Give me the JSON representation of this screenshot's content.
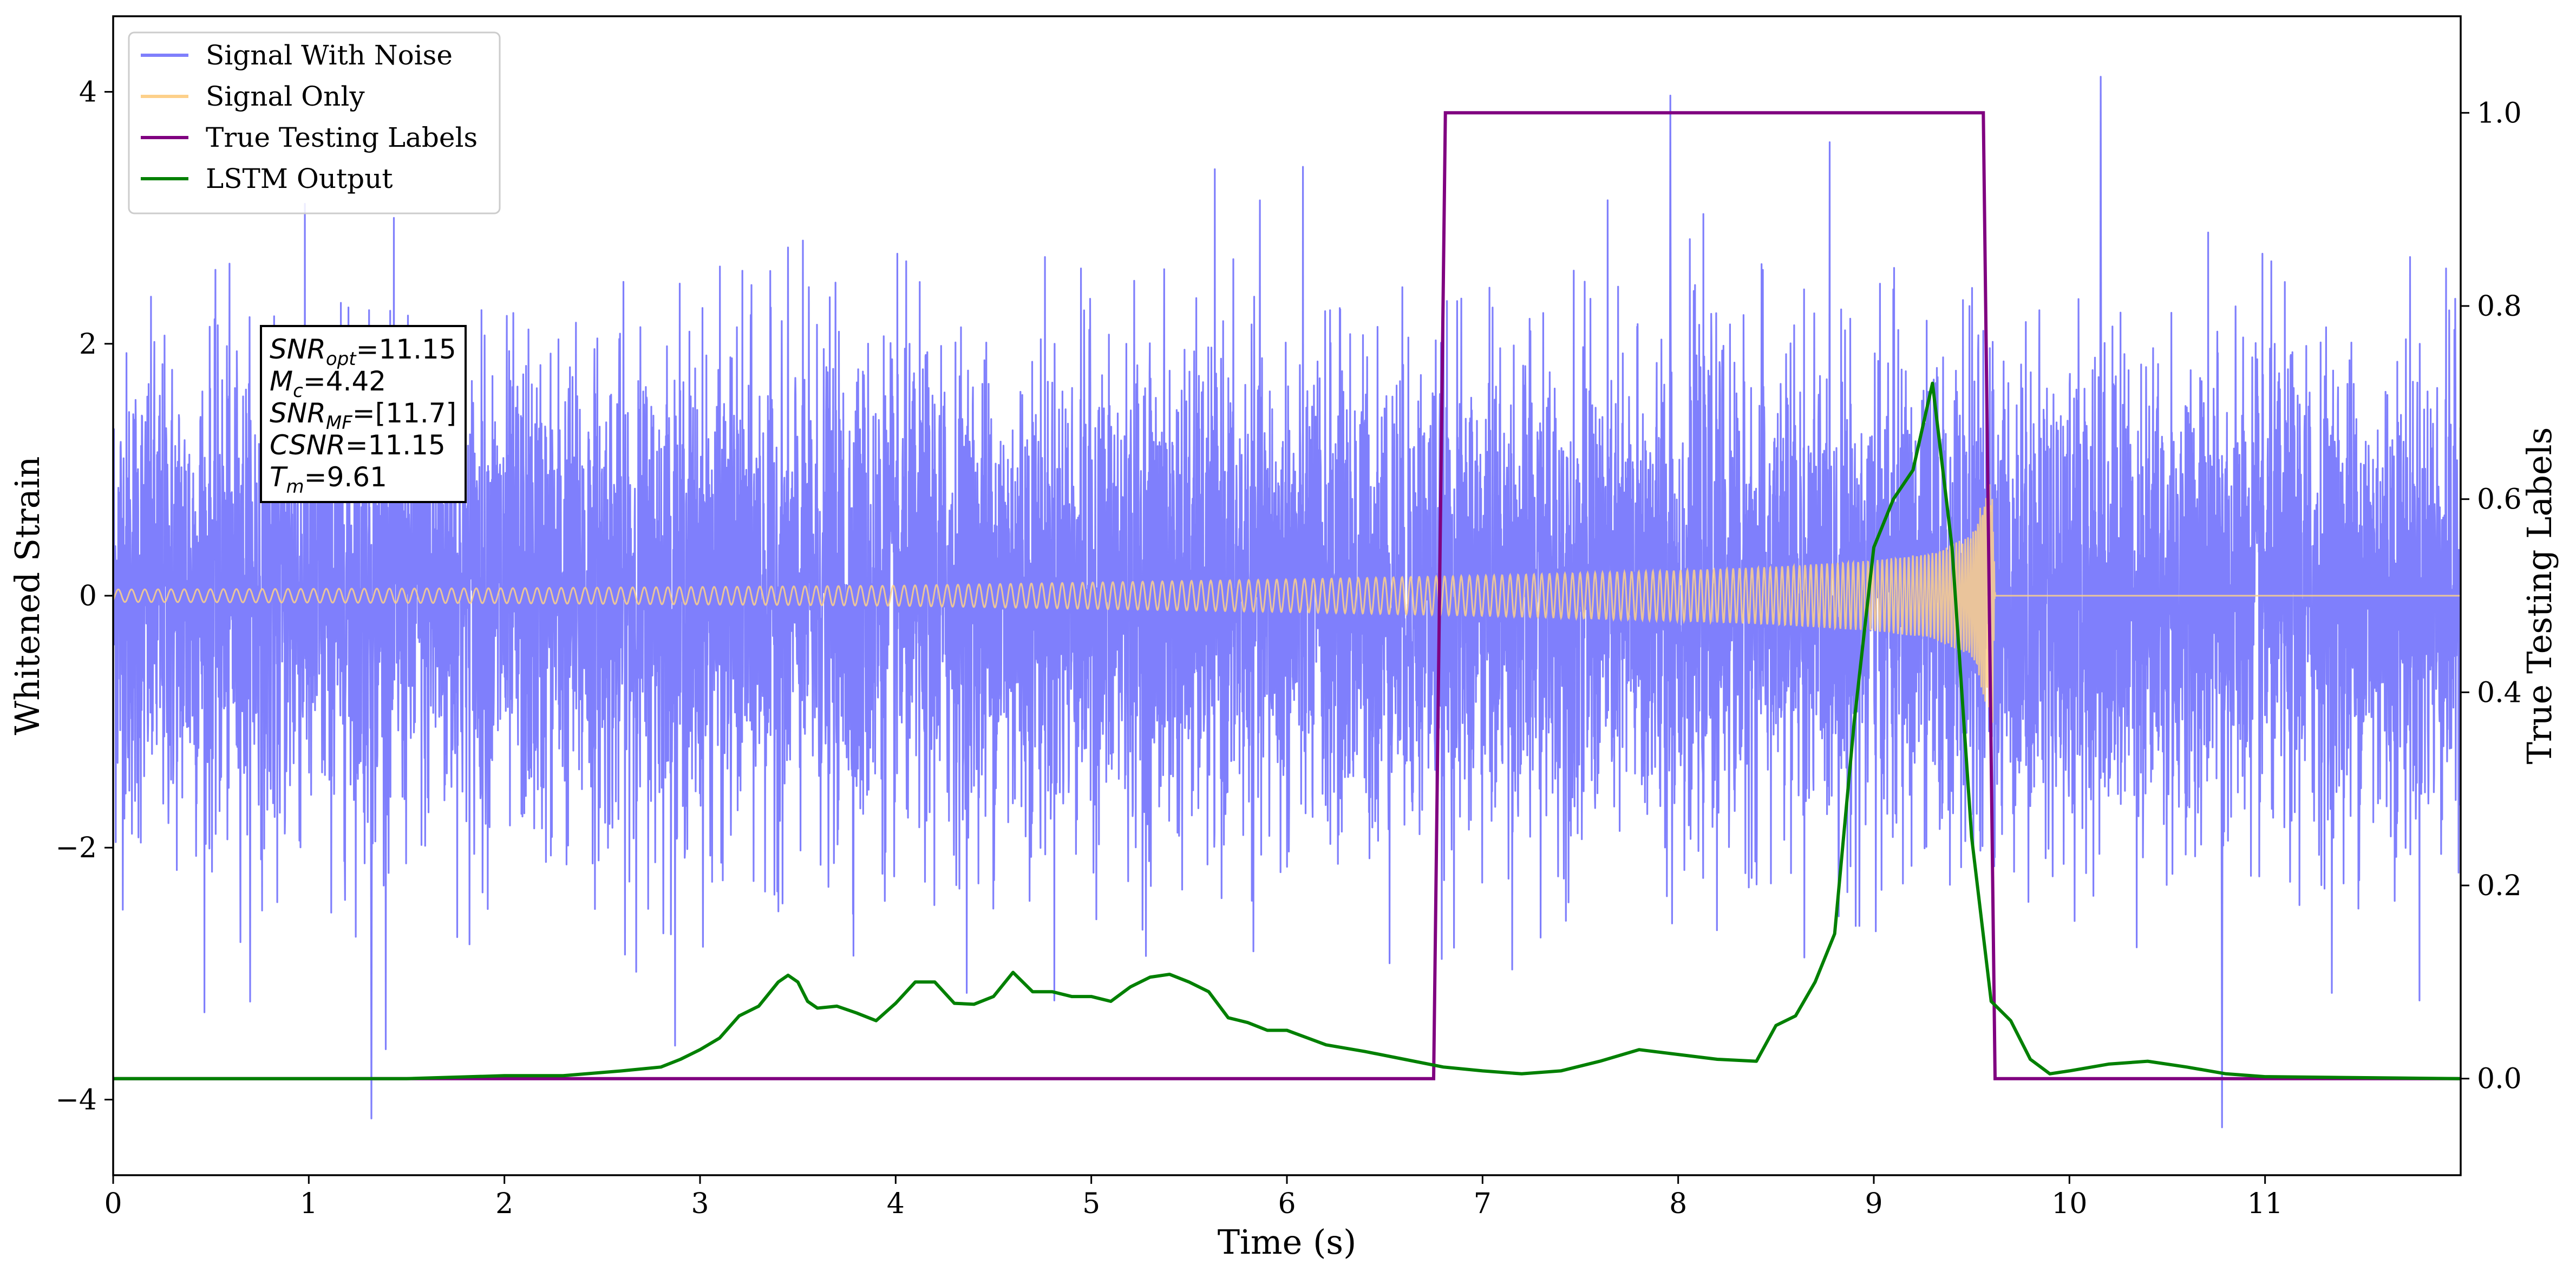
{
  "chart_data": {
    "type": "line",
    "xlabel": "Time (s)",
    "ylabel": "Whitened Strain",
    "y2label": "True Testing Labels",
    "xlim": [
      0,
      12
    ],
    "ylim": [
      -4.6,
      4.6
    ],
    "y2lim": [
      -0.1,
      1.1
    ],
    "x_ticks": [
      0,
      1,
      2,
      3,
      4,
      5,
      6,
      7,
      8,
      9,
      10,
      11
    ],
    "x_tick_labels": [
      "0",
      "1",
      "2",
      "3",
      "4",
      "5",
      "6",
      "7",
      "8",
      "9",
      "10",
      "11"
    ],
    "y_ticks": [
      -4,
      -2,
      0,
      2,
      4
    ],
    "y_tick_labels": [
      "−4",
      "−2",
      "0",
      "2",
      "4"
    ],
    "y2_ticks": [
      0.0,
      0.2,
      0.4,
      0.6,
      0.8,
      1.0
    ],
    "y2_tick_labels": [
      "0.0",
      "0.2",
      "0.4",
      "0.6",
      "0.8",
      "1.0"
    ],
    "grid": false,
    "legend_placement": "top-left",
    "legend": [
      {
        "label": "Signal With Noise",
        "color": "#7f7ffc"
      },
      {
        "label": "Signal Only",
        "color": "#fdd08a"
      },
      {
        "label": "True Testing Labels",
        "color": "#800080"
      },
      {
        "label": "LSTM Output",
        "color": "#008000"
      }
    ],
    "series": [
      {
        "name": "Signal With Noise",
        "axis": "left",
        "color": "#7f7ffc",
        "kind": "dense-noise",
        "x_range": [
          0,
          12
        ],
        "amplitude_band": [
          -1.5,
          1.5
        ],
        "peaks": [
          {
            "x": 1.32,
            "y": -4.15
          },
          {
            "x": 7.96,
            "y": 3.97
          },
          {
            "x": 10.16,
            "y": 4.12
          },
          {
            "x": 10.78,
            "y": -4.22
          }
        ]
      },
      {
        "name": "Signal Only",
        "axis": "left",
        "color": "#fdd08a",
        "kind": "chirp",
        "x": [
          0,
          2,
          4,
          6,
          7,
          8,
          8.5,
          9,
          9.3,
          9.5,
          9.61,
          9.62,
          12
        ],
        "envelope": [
          0.05,
          0.06,
          0.08,
          0.13,
          0.16,
          0.2,
          0.23,
          0.28,
          0.34,
          0.48,
          1.05,
          0.0,
          0.0
        ]
      },
      {
        "name": "True Testing Labels",
        "axis": "right",
        "color": "#800080",
        "x": [
          0,
          6.75,
          6.81,
          9.56,
          9.62,
          12
        ],
        "y": [
          0,
          0,
          1,
          1,
          0,
          0
        ]
      },
      {
        "name": "LSTM Output",
        "axis": "right",
        "color": "#008000",
        "x": [
          0,
          1,
          1.5,
          2,
          2.3,
          2.6,
          2.8,
          2.9,
          3.0,
          3.1,
          3.2,
          3.3,
          3.4,
          3.45,
          3.5,
          3.55,
          3.6,
          3.7,
          3.8,
          3.9,
          4.0,
          4.1,
          4.2,
          4.3,
          4.4,
          4.5,
          4.6,
          4.7,
          4.8,
          4.9,
          5.0,
          5.1,
          5.2,
          5.3,
          5.4,
          5.5,
          5.6,
          5.7,
          5.8,
          5.9,
          6.0,
          6.2,
          6.4,
          6.6,
          6.8,
          7.0,
          7.2,
          7.4,
          7.6,
          7.8,
          8.0,
          8.2,
          8.4,
          8.5,
          8.6,
          8.7,
          8.8,
          8.9,
          9.0,
          9.1,
          9.2,
          9.3,
          9.4,
          9.5,
          9.6,
          9.7,
          9.8,
          9.9,
          10.0,
          10.2,
          10.4,
          10.6,
          10.8,
          11.0,
          12.0
        ],
        "y": [
          0,
          0,
          0,
          0.003,
          0.003,
          0.008,
          0.012,
          0.02,
          0.03,
          0.042,
          0.065,
          0.075,
          0.1,
          0.107,
          0.1,
          0.08,
          0.073,
          0.075,
          0.068,
          0.06,
          0.078,
          0.1,
          0.1,
          0.078,
          0.077,
          0.085,
          0.11,
          0.09,
          0.09,
          0.085,
          0.085,
          0.08,
          0.095,
          0.105,
          0.108,
          0.1,
          0.09,
          0.063,
          0.058,
          0.05,
          0.05,
          0.035,
          0.028,
          0.02,
          0.012,
          0.008,
          0.005,
          0.008,
          0.018,
          0.03,
          0.025,
          0.02,
          0.018,
          0.055,
          0.065,
          0.1,
          0.15,
          0.37,
          0.55,
          0.6,
          0.63,
          0.72,
          0.55,
          0.25,
          0.08,
          0.06,
          0.02,
          0.005,
          0.008,
          0.015,
          0.018,
          0.012,
          0.005,
          0.002,
          0.0
        ]
      }
    ],
    "annotations": {
      "info_box": [
        {
          "base": "SNR",
          "sub": "opt",
          "value": "=11.15"
        },
        {
          "base": "M",
          "sub": "c",
          "value": "=4.42"
        },
        {
          "base": "SNR",
          "sub": "MF",
          "value": "=[11.7]"
        },
        {
          "base": "CSNR",
          "sub": "",
          "value": "=11.15"
        },
        {
          "base": "T",
          "sub": "m",
          "value": "=9.61"
        }
      ]
    }
  }
}
